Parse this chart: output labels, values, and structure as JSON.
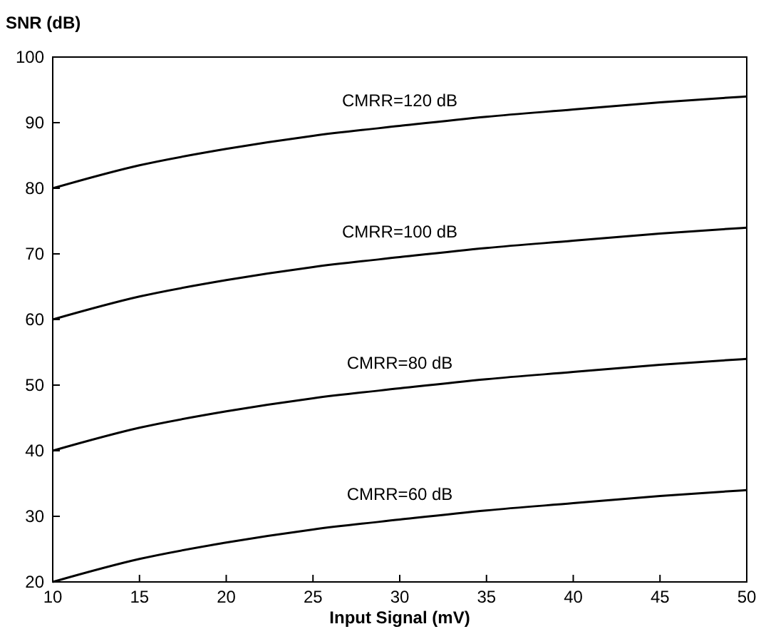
{
  "chart_data": {
    "type": "line",
    "xlabel": "Input Signal (mV)",
    "ylabel": "SNR (dB)",
    "x": [
      10,
      15,
      20,
      25,
      30,
      35,
      40,
      45,
      50
    ],
    "series": [
      {
        "name": "CMRR=120 dB",
        "color": "#000000",
        "values": [
          80,
          83.5,
          86,
          88,
          89.5,
          90.9,
          92,
          93.1,
          94
        ]
      },
      {
        "name": "CMRR=100 dB",
        "color": "#000000",
        "values": [
          60,
          63.5,
          66,
          68,
          69.5,
          70.9,
          72,
          73.1,
          74
        ]
      },
      {
        "name": "CMRR=80 dB",
        "color": "#000000",
        "values": [
          40,
          43.5,
          46,
          48,
          49.5,
          50.9,
          52,
          53.1,
          54
        ]
      },
      {
        "name": "CMRR=60 dB",
        "color": "#000000",
        "values": [
          20,
          23.5,
          26,
          28,
          29.5,
          30.9,
          32,
          33.1,
          34
        ]
      }
    ],
    "xlim": [
      10,
      50
    ],
    "ylim": [
      20,
      100
    ],
    "xticks": [
      10,
      15,
      20,
      25,
      30,
      35,
      40,
      45,
      50
    ],
    "yticks": [
      20,
      30,
      40,
      50,
      60,
      70,
      80,
      90,
      100
    ],
    "grid": false,
    "marker": "none",
    "line_style": "solid"
  }
}
